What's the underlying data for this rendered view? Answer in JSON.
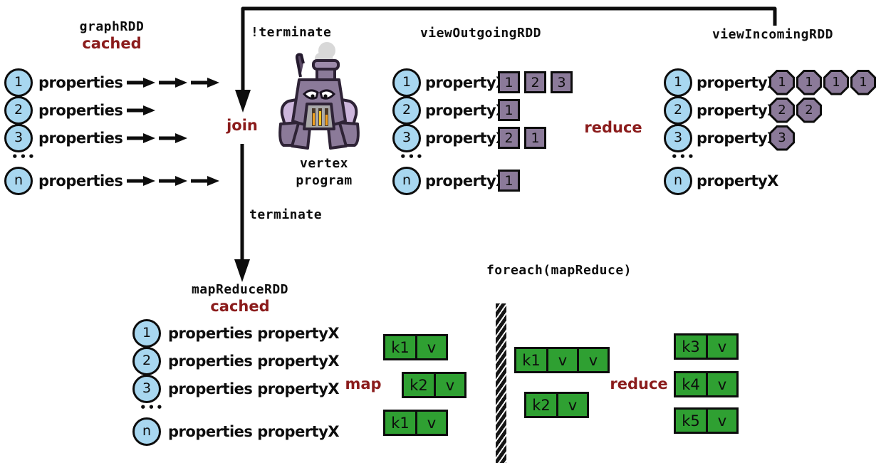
{
  "palette": {
    "vertex_circle_fill": "#a8d7f0",
    "message_purple": "#8b7a99",
    "kv_green": "#2fa032",
    "accent_maroon": "#8b1c1c",
    "line_black": "#0d0d0d"
  },
  "graph_rdd": {
    "title": "graphRDD",
    "cache_label": "cached",
    "dots": "•••",
    "rows": [
      {
        "id": "1",
        "label": "properties",
        "arrows": 3
      },
      {
        "id": "2",
        "label": "properties",
        "arrows": 1
      },
      {
        "id": "3",
        "label": "properties",
        "arrows": 2
      },
      {
        "id": "n",
        "label": "properties",
        "arrows": 3
      }
    ]
  },
  "loop": {
    "not_terminate_label": "!terminate",
    "join_label": "join",
    "terminate_label": "terminate",
    "vertex_program_line1": "vertex",
    "vertex_program_line2": "program"
  },
  "view_outgoing": {
    "title": "viewOutgoingRDD",
    "dots": "•••",
    "rows": [
      {
        "id": "1",
        "label": "propertyX",
        "cells": [
          "1",
          "2",
          "3"
        ]
      },
      {
        "id": "2",
        "label": "propertyX",
        "cells": [
          "1"
        ]
      },
      {
        "id": "3",
        "label": "propertyX",
        "cells": [
          "2",
          "1"
        ]
      },
      {
        "id": "n",
        "label": "propertyX",
        "cells": [
          "1"
        ]
      }
    ]
  },
  "reduce_top_label": "reduce",
  "view_incoming": {
    "title": "viewIncomingRDD",
    "dots": "•••",
    "rows": [
      {
        "id": "1",
        "label": "propertyX",
        "cells": [
          "1",
          "1",
          "1",
          "1"
        ]
      },
      {
        "id": "2",
        "label": "propertyX",
        "cells": [
          "2",
          "2"
        ]
      },
      {
        "id": "3",
        "label": "propertyX",
        "cells": [
          "3"
        ]
      },
      {
        "id": "n",
        "label": "propertyX",
        "cells": []
      }
    ]
  },
  "map_reduce_rdd": {
    "title": "mapReduceRDD",
    "cache_label": "cached",
    "dots": "•••",
    "rows": [
      {
        "id": "1",
        "label": "properties propertyX"
      },
      {
        "id": "2",
        "label": "properties propertyX"
      },
      {
        "id": "3",
        "label": "properties propertyX"
      },
      {
        "id": "n",
        "label": "properties propertyX"
      }
    ]
  },
  "map_label": "map",
  "map_boxes": [
    {
      "cells": [
        "k1",
        "v"
      ]
    },
    {
      "cells": [
        "k2",
        "v"
      ]
    },
    {
      "cells": [
        "k1",
        "v"
      ]
    }
  ],
  "foreach_label": "foreach(mapReduce)",
  "shuffle_boxes": [
    {
      "cells": [
        "k1",
        "v",
        "v"
      ]
    },
    {
      "cells": [
        "k2",
        "v"
      ]
    }
  ],
  "reduce_bottom_label": "reduce",
  "reduce_boxes": [
    {
      "cells": [
        "k3",
        "v"
      ]
    },
    {
      "cells": [
        "k4",
        "v"
      ]
    },
    {
      "cells": [
        "k5",
        "v"
      ]
    }
  ]
}
